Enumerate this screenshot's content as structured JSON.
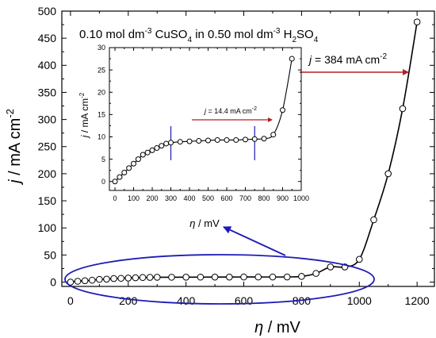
{
  "chart_data": {
    "type": "line",
    "title": "0.10 mol dm⁻³ CuSO₄ in 0.50 mol dm⁻³ H₂SO₄",
    "title_parts": {
      "a": "0.10 mol dm",
      "a_sup": "-3",
      "b": " CuSO",
      "b_sub": "4",
      "c": " in 0.50 mol dm",
      "c_sup": "-3",
      "d": " H",
      "d_sub": "2",
      "e": "SO",
      "e_sub": "4"
    },
    "main": {
      "xlabel": {
        "symbol": "η",
        "unit": " / mV"
      },
      "ylabel": {
        "symbol": "j",
        "unit": " / mA cm",
        "unit_sup": "-2"
      },
      "xlim": [
        -30,
        1260
      ],
      "ylim": [
        -8,
        500
      ],
      "xticks": [
        0,
        200,
        400,
        600,
        800,
        1000,
        1200
      ],
      "yticks": [
        0,
        50,
        100,
        150,
        200,
        250,
        300,
        350,
        400,
        450,
        500
      ],
      "series": [
        {
          "x": [
            0,
            25,
            50,
            75,
            100,
            125,
            150,
            175,
            200,
            225,
            250,
            275,
            300,
            350,
            400,
            450,
            500,
            550,
            600,
            650,
            700,
            750,
            800,
            850,
            900,
            950,
            1000,
            1050,
            1100,
            1150,
            1200
          ],
          "values": [
            0,
            1.5,
            2.5,
            3.5,
            5,
            5.5,
            6.5,
            7,
            7.5,
            8,
            8.5,
            8.7,
            8.9,
            9,
            9.1,
            9.2,
            9.3,
            9.3,
            9.4,
            9.4,
            9.4,
            9.5,
            10.5,
            16,
            28,
            28,
            42,
            115,
            200,
            320,
            480
          ]
        }
      ],
      "annotation": {
        "text": "j = 384 mA cm",
        "symbol": "j",
        "rest": " = 384 mA cm",
        "sup": "-2",
        "arrow_color": "#b22222"
      },
      "highlight": {
        "shape": "ellipse",
        "color": "#1c1cb4"
      }
    },
    "inset": {
      "xlabel": {
        "symbol": "η",
        "unit": " / mV"
      },
      "ylabel": {
        "symbol": "j",
        "unit": " / mA cm",
        "unit_sup": "-2"
      },
      "xlim": [
        -30,
        1000
      ],
      "ylim": [
        -2,
        30
      ],
      "xticks": [
        0,
        100,
        200,
        300,
        400,
        500,
        600,
        700,
        800,
        900,
        1000
      ],
      "yticks": [
        0,
        5,
        10,
        15,
        20,
        25,
        30
      ],
      "series": [
        {
          "x": [
            0,
            25,
            50,
            75,
            100,
            125,
            150,
            175,
            200,
            225,
            250,
            275,
            300,
            350,
            400,
            450,
            500,
            550,
            600,
            650,
            700,
            750,
            800,
            850,
            900,
            950
          ],
          "values": [
            0,
            1,
            2,
            3,
            4,
            5,
            6,
            6.5,
            7,
            7.5,
            8,
            8.5,
            8.7,
            8.9,
            9,
            9.1,
            9.2,
            9.3,
            9.3,
            9.3,
            9.4,
            9.5,
            9.6,
            10.5,
            16,
            27.5
          ]
        }
      ],
      "vlines": [
        300,
        750
      ],
      "vline_color": "#1c1cb4",
      "annotation": {
        "text": "j = 14.4 mA cm",
        "symbol": "j",
        "rest": " = 14.4 mA cm",
        "sup": "-2",
        "arrow_color": "#b22222"
      }
    }
  }
}
